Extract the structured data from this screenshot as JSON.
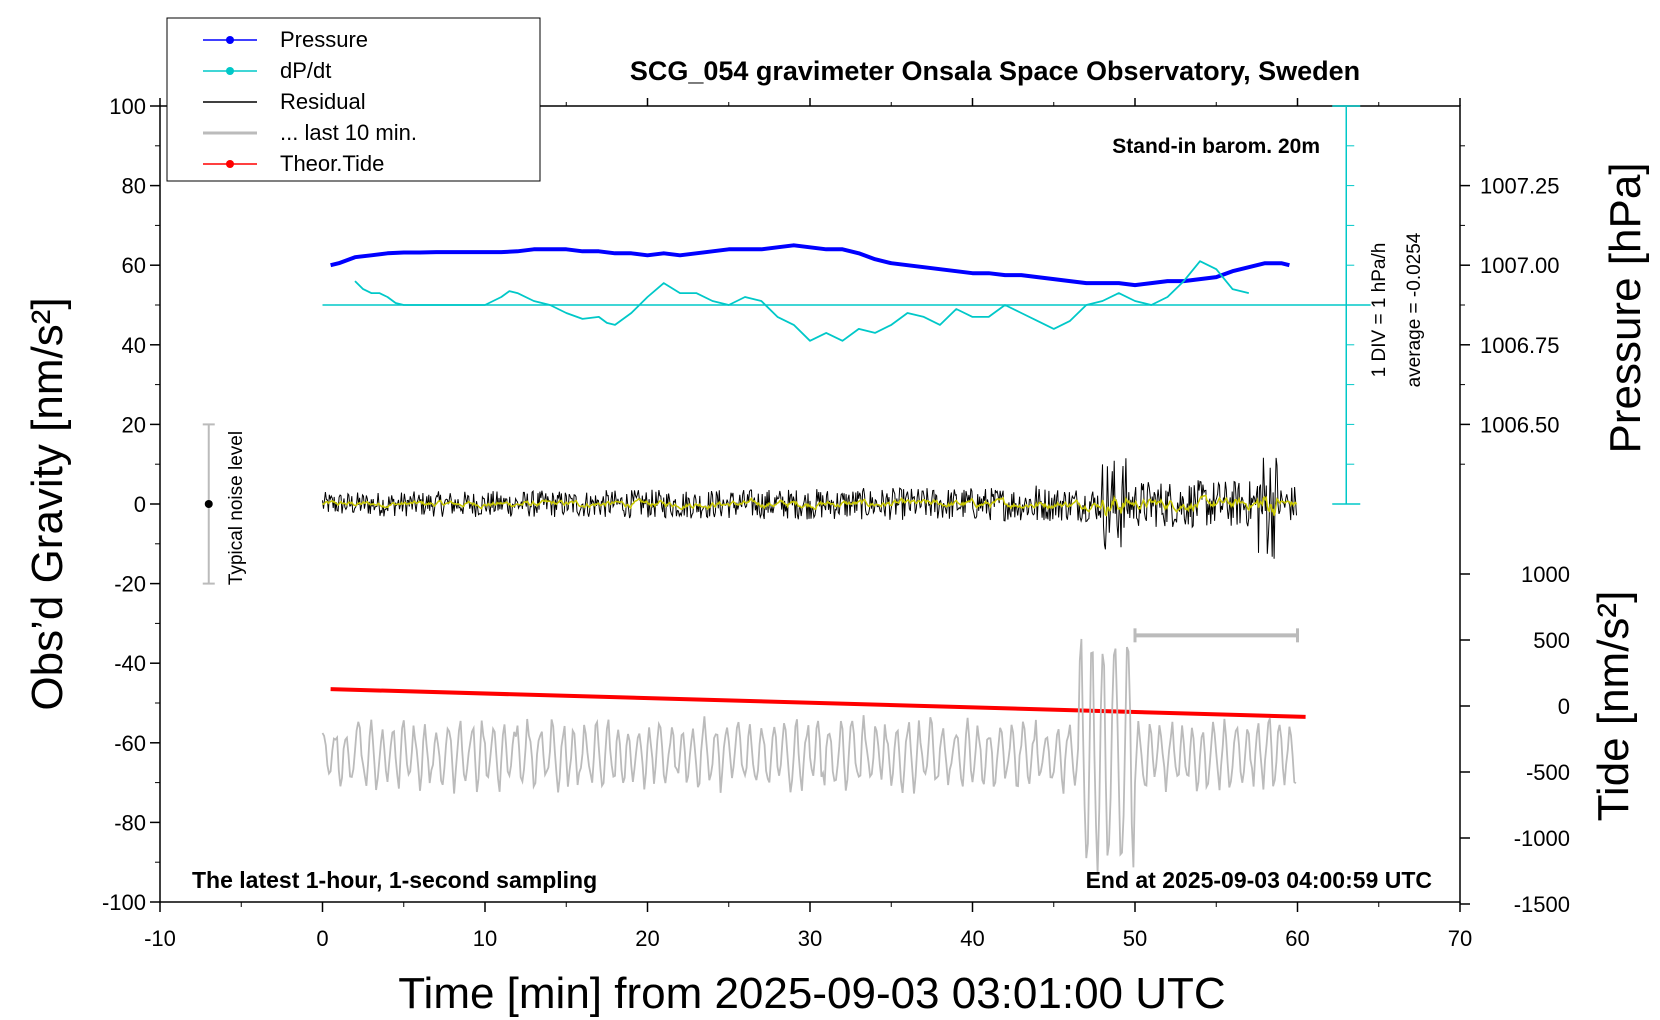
{
  "chart_data": {
    "type": "line",
    "title": "SCG_054 gravimeter Onsala Space Observatory, Sweden",
    "xlabel": "Time [min] from 2025-09-03 03:01:00 UTC",
    "ylabel_left": "Obs’d Gravity [nm/s²]",
    "ylabel_right_top": "Pressure [hPa]",
    "ylabel_right_bottom": "Tide [nm/s²]",
    "xlim": [
      -10,
      70
    ],
    "ylim_left": [
      -100,
      100
    ],
    "x_ticks": [
      "-10",
      "0",
      "10",
      "20",
      "30",
      "40",
      "50",
      "60",
      "70"
    ],
    "y_ticks_left": [
      "100",
      "80",
      "60",
      "40",
      "20",
      "0",
      "-20",
      "-40",
      "-60",
      "-80",
      "-100"
    ],
    "pressure_ticks": [
      "1007.25",
      "1007.00",
      "1006.75",
      "1006.50"
    ],
    "tide_ticks": [
      "1000",
      "500",
      "0",
      "-500",
      "-1000",
      "-1500"
    ],
    "legend": {
      "placement": "top-left",
      "entries": [
        {
          "label": "Pressure",
          "color": "#0000ff",
          "marker": true
        },
        {
          "label": "dP/dt",
          "color": "#00c8c8",
          "marker": true
        },
        {
          "label": "Residual",
          "color": "#000000",
          "marker": false
        },
        {
          "label": "... last 10 min.",
          "color": "#bbbbbb",
          "marker": false
        },
        {
          "label": "Theor.Tide",
          "color": "#ff0000",
          "marker": true
        }
      ]
    },
    "annotations": {
      "stand_in": "Stand-in barom. 20m",
      "div_label": "1 DIV = 1 hPa/h",
      "average_label": "average = -0.0254",
      "noise_label": "Typical noise level",
      "bottom_left": "The latest 1-hour, 1-second sampling",
      "bottom_right": "End at 2025-09-03 04:00:59 UTC"
    },
    "noise_level": {
      "x": -7,
      "center": 0,
      "range": [
        -20,
        20
      ]
    },
    "last_10_min_bar": {
      "x": [
        50,
        60
      ],
      "y": -33
    },
    "dpdt_zero_line_y": 50,
    "series": [
      {
        "name": "Pressure",
        "color": "#0000ff",
        "x": [
          0.5,
          1,
          2,
          3,
          4,
          5,
          6,
          7,
          8,
          9,
          10,
          11,
          12,
          13,
          14,
          15,
          16,
          17,
          18,
          19,
          20,
          21,
          22,
          23,
          24,
          25,
          26,
          27,
          28,
          29,
          30,
          31,
          32,
          33,
          34,
          35,
          36,
          37,
          38,
          39,
          40,
          41,
          42,
          43,
          44,
          45,
          46,
          47,
          48,
          49,
          50,
          51,
          52,
          53,
          54,
          55,
          56,
          57,
          58,
          59,
          59.5
        ],
        "y": [
          60,
          60.5,
          62,
          62.5,
          63,
          63.2,
          63.2,
          63.3,
          63.3,
          63.3,
          63.3,
          63.3,
          63.5,
          64,
          64,
          64,
          63.5,
          63.5,
          63,
          63,
          62.5,
          63,
          62.5,
          63,
          63.5,
          64,
          64,
          64,
          64.5,
          65,
          64.5,
          64,
          64,
          63,
          61.5,
          60.5,
          60,
          59.5,
          59,
          58.5,
          58,
          58,
          57.5,
          57.5,
          57,
          56.5,
          56,
          55.5,
          55.5,
          55.5,
          55,
          55.5,
          56,
          56,
          56.5,
          57,
          58.5,
          59.5,
          60.5,
          60.5,
          60
        ]
      },
      {
        "name": "dP/dt",
        "color": "#00c8c8",
        "x": [
          2,
          2.5,
          3,
          3.5,
          4,
          4.5,
          5,
          6,
          7,
          8,
          9,
          10,
          11,
          11.5,
          12,
          13,
          14,
          15,
          16,
          17,
          17.5,
          18,
          19,
          20,
          21,
          22,
          23,
          24,
          25,
          26,
          27,
          28,
          29,
          30,
          31,
          32,
          33,
          34,
          35,
          36,
          37,
          38,
          39,
          40,
          41,
          42,
          43,
          44,
          45,
          46,
          47,
          48,
          49,
          50,
          51,
          52,
          53,
          54,
          55,
          56,
          57
        ],
        "y": [
          56,
          54,
          53,
          53,
          52,
          50.5,
          50,
          50,
          50,
          50,
          50,
          50,
          52,
          53.5,
          53,
          51,
          50,
          48,
          46.5,
          47,
          45.5,
          45,
          48,
          52,
          55.5,
          53,
          53,
          51,
          50,
          52,
          51,
          47,
          45,
          41,
          43,
          41,
          44,
          43,
          45,
          48,
          47,
          45,
          49,
          47,
          47,
          50,
          48,
          46,
          44,
          46,
          50,
          51,
          53,
          51,
          50,
          52,
          56,
          61,
          59,
          54,
          53
        ]
      },
      {
        "name": "Theor.Tide",
        "color": "#ff0000",
        "x": [
          0.5,
          60.5
        ],
        "y": [
          -46.5,
          -53.5
        ]
      }
    ]
  }
}
